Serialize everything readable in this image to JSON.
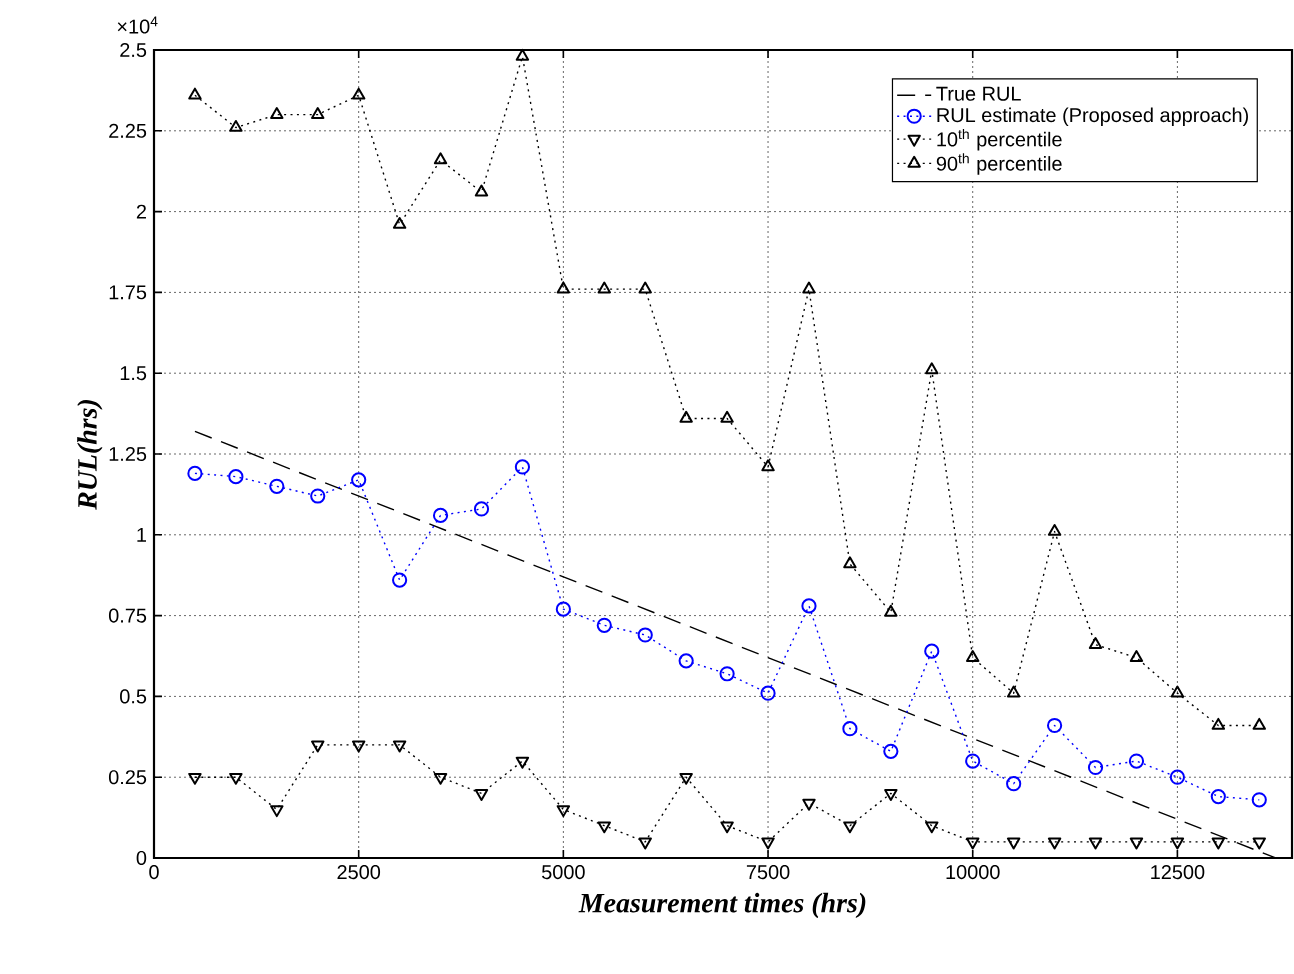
{
  "chart_data": {
    "type": "line",
    "xlabel": "Measurement times (hrs)",
    "ylabel": "RUL(hrs)",
    "annotations": [
      "×10$^{4}$"
    ],
    "xlim": [
      0,
      13900
    ],
    "ylim": [
      0,
      2.5
    ],
    "xticks": [
      0,
      2500,
      5000,
      7500,
      10000,
      12500
    ],
    "yticks": [
      0,
      0.25,
      0.5,
      0.75,
      1,
      1.25,
      1.5,
      1.75,
      2,
      2.25,
      2.5
    ],
    "grid": true,
    "legend": "top right",
    "series": [
      {
        "name": "True RUL",
        "color": "#000000",
        "line_style": "dashed",
        "marker": "none",
        "x": [
          500,
          13700
        ],
        "values": [
          1.32,
          0
        ]
      },
      {
        "name": "RUL estimate (Proposed approach)",
        "color": "#0000ff",
        "line_style": "dotted",
        "marker": "circle",
        "x": [
          500,
          1000,
          1500,
          2000,
          2500,
          3000,
          3500,
          4000,
          4500,
          5000,
          5500,
          6000,
          6500,
          7000,
          7500,
          8000,
          8500,
          9000,
          9500,
          10000,
          10500,
          11000,
          11500,
          12000,
          12500,
          13000,
          13500
        ],
        "values": [
          1.19,
          1.18,
          1.15,
          1.12,
          1.17,
          0.86,
          1.06,
          1.08,
          1.21,
          0.77,
          0.72,
          0.69,
          0.61,
          0.57,
          0.51,
          0.78,
          0.4,
          0.33,
          0.64,
          0.3,
          0.23,
          0.41,
          0.28,
          0.3,
          0.25,
          0.19,
          0.18
        ]
      },
      {
        "name": "10$^{th}$ percentile",
        "color": "#000000",
        "line_style": "dotted",
        "marker": "triangle-down",
        "x": [
          500,
          1000,
          1500,
          2000,
          2500,
          3000,
          3500,
          4000,
          4500,
          5000,
          5500,
          6000,
          6500,
          7000,
          7500,
          8000,
          8500,
          9000,
          9500,
          10000,
          10500,
          11000,
          11500,
          12000,
          12500,
          13000,
          13500
        ],
        "values": [
          0.25,
          0.25,
          0.15,
          0.35,
          0.35,
          0.35,
          0.25,
          0.2,
          0.3,
          0.15,
          0.1,
          0.05,
          0.25,
          0.1,
          0.05,
          0.17,
          0.1,
          0.2,
          0.1,
          0.05,
          0.05,
          0.05,
          0.05,
          0.05,
          0.05,
          0.05,
          0.05
        ]
      },
      {
        "name": "90$^{th}$ percentile",
        "color": "#000000",
        "line_style": "dotted",
        "marker": "triangle",
        "x": [
          500,
          1000,
          1500,
          2000,
          2500,
          3000,
          3500,
          4000,
          4500,
          5000,
          5500,
          6000,
          6500,
          7000,
          7500,
          8000,
          8500,
          9000,
          9500,
          10000,
          10500,
          11000,
          11500,
          12000,
          12500,
          13000,
          13500
        ],
        "values": [
          2.36,
          2.26,
          2.3,
          2.3,
          2.36,
          1.96,
          2.16,
          2.06,
          2.48,
          1.76,
          1.76,
          1.76,
          1.36,
          1.36,
          1.21,
          1.76,
          0.91,
          0.76,
          1.51,
          0.62,
          0.51,
          1.01,
          0.66,
          0.62,
          0.51,
          0.41,
          0.41
        ]
      }
    ]
  }
}
